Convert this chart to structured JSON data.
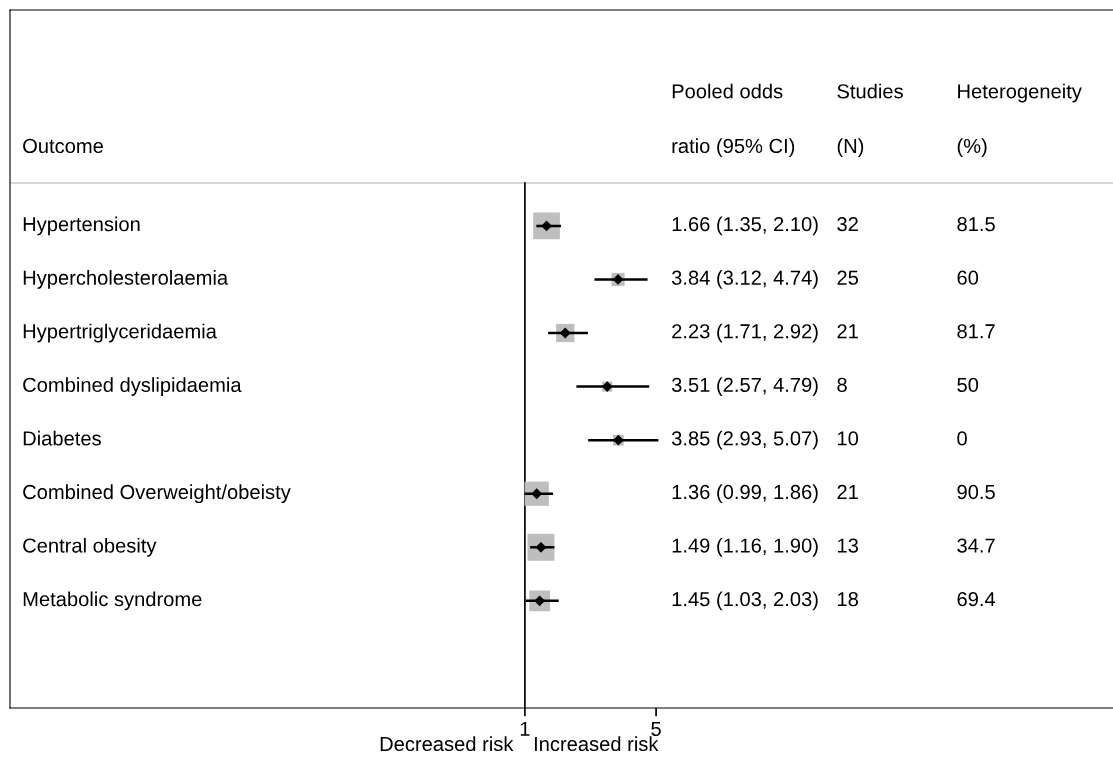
{
  "chart_data": {
    "type": "scatter",
    "orientation": "horizontal",
    "ylabel": "Outcome",
    "categories": [
      "Hypertension",
      "Hypercholesterolaemia",
      "Hypertriglyceridaemia",
      "Combined dyslipidaemia",
      "Diabetes",
      "Combined Overweight/obeisty",
      "Central obesity",
      "Metabolic syndrome"
    ],
    "series": [
      {
        "color": "#bebebe",
        "values": [
          1.66,
          3.84,
          2.23,
          3.51,
          3.85,
          1.36,
          1.49,
          1.45
        ],
        "errors": [
          [
            1.35,
            2.1
          ],
          [
            3.12,
            4.74
          ],
          [
            1.71,
            2.92
          ],
          [
            2.57,
            4.79
          ],
          [
            2.93,
            5.07
          ],
          [
            0.99,
            1.86
          ],
          [
            1.16,
            1.9
          ],
          [
            1.03,
            2.03
          ]
        ],
        "sizes": [
          0.98,
          0.24,
          0.46,
          0.14,
          0.16,
          0.81,
          1,
          0.59
        ]
      }
    ],
    "marker": "square",
    "xlim": [
      -14.7,
      19
    ],
    "xticks": [
      1,
      5
    ],
    "ref_lines": [
      {
        "axis": "x",
        "value": 1,
        "color": "#000000"
      }
    ],
    "annotations": [
      "Pooled odds\nratio (95% CI)",
      "Studies\n(N)",
      "Heterogeneity\n(%)",
      "Decreased risk",
      "Increased risk",
      "1.66 (1.35, 2.10)",
      "3.84 (3.12, 4.74)",
      "2.23 (1.71, 2.92)",
      "3.51 (2.57, 4.79)",
      "3.85 (2.93, 5.07)",
      "1.36 (0.99, 1.86)",
      "1.49 (1.16, 1.90)",
      "1.45 (1.03, 2.03)",
      "32",
      "25",
      "21",
      "8",
      "10",
      "21",
      "13",
      "18",
      "81.5",
      "60",
      "81.7",
      "50",
      "0",
      "90.5",
      "34.7",
      "69.4"
    ]
  }
}
